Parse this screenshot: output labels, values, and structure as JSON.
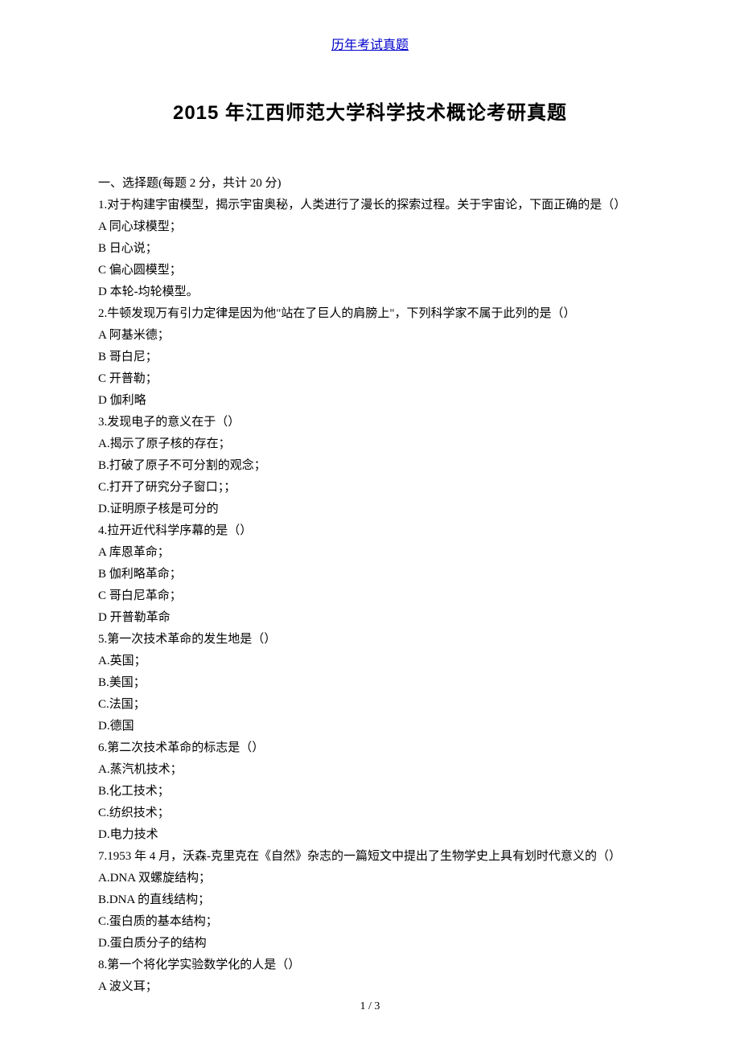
{
  "header": {
    "link_text": "历年考试真题"
  },
  "title": "2015 年江西师范大学科学技术概论考研真题",
  "section_heading": "一、选择题(每题 2 分，共计 20 分)",
  "questions": [
    {
      "stem": "1.对于构建宇宙模型，揭示宇宙奥秘，人类进行了漫长的探索过程。关于宇宙论，下面正确的是（）",
      "opts": [
        "A 同心球模型；",
        "B 日心说；",
        "C 偏心圆模型；",
        "D 本轮-均轮模型。"
      ]
    },
    {
      "stem": "2.牛顿发现万有引力定律是因为他\"站在了巨人的肩膀上\"，下列科学家不属于此列的是（）",
      "opts": [
        "A 阿基米德；",
        "B 哥白尼；",
        "C 开普勒；",
        "D 伽利略"
      ]
    },
    {
      "stem": "3.发现电子的意义在于（）",
      "opts": [
        "A.揭示了原子核的存在；",
        "B.打破了原子不可分割的观念；",
        "C.打开了研究分子窗口；；",
        "D.证明原子核是可分的"
      ]
    },
    {
      "stem": "4.拉开近代科学序幕的是（）",
      "opts": [
        "A 库恩革命；",
        "B 伽利略革命；",
        "C 哥白尼革命；",
        "D 开普勒革命"
      ]
    },
    {
      "stem": "5.第一次技术革命的发生地是（）",
      "opts": [
        "A.英国；",
        "B.美国；",
        "C.法国；",
        "D.德国"
      ]
    },
    {
      "stem": "6.第二次技术革命的标志是（）",
      "opts": [
        "A.蒸汽机技术；",
        "B.化工技术；",
        "C.纺织技术；",
        "D.电力技术"
      ]
    },
    {
      "stem": "7.1953 年 4 月，沃森-克里克在《自然》杂志的一篇短文中提出了生物学史上具有划时代意义的（）",
      "opts": [
        "A.DNA 双螺旋结构；",
        "B.DNA 的直线结构；",
        "C.蛋白质的基本结构；",
        "D.蛋白质分子的结构"
      ]
    },
    {
      "stem": "8.第一个将化学实验数学化的人是（）",
      "opts": [
        "A 波义耳；"
      ]
    }
  ],
  "footer": {
    "page": "1 / 3"
  },
  "colors": {
    "link": "#0000cc",
    "text": "#000000",
    "bg": "#ffffff"
  },
  "typography": {
    "body_fontsize": 15,
    "title_fontsize": 24,
    "line_height": 27
  }
}
